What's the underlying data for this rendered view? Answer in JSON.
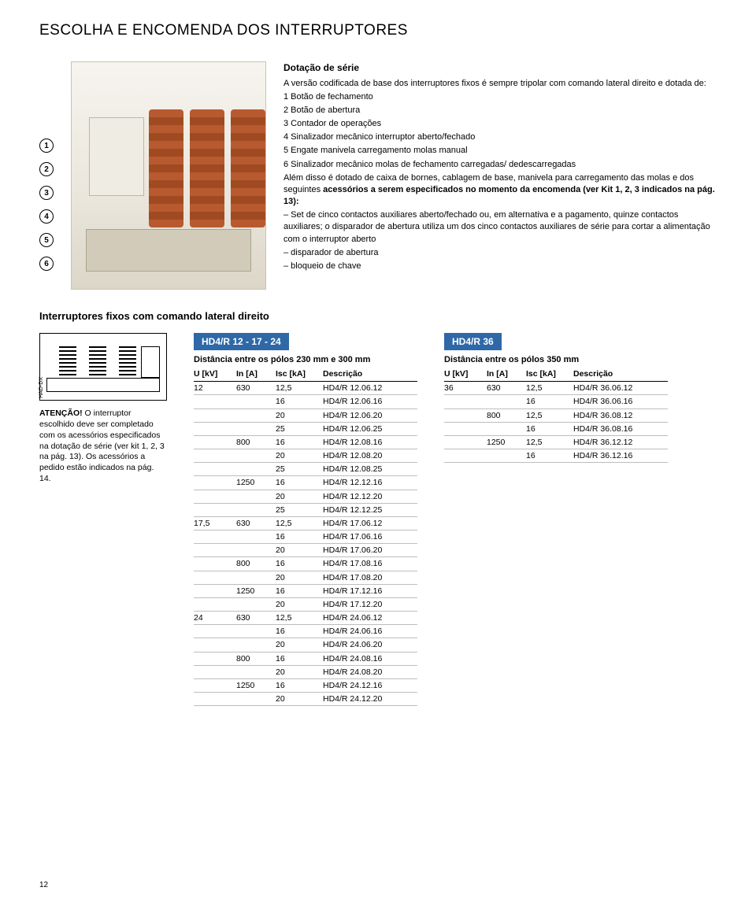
{
  "page_title": "ESCOLHA E ENCOMENDA DOS INTERRUPTORES",
  "callouts": [
    "1",
    "2",
    "3",
    "4",
    "5",
    "6"
  ],
  "desc": {
    "heading": "Dotação de série",
    "intro": "A versão codificada de base dos interruptores fixos é sempre tripolar com comando lateral direito e dotada de:",
    "items": [
      "1 Botão de fechamento",
      "2 Botão de abertura",
      "3 Contador de operações",
      "4 Sinalizador mecânico interruptor aberto/fechado",
      "5 Engate manivela carregamento molas manual",
      "6 Sinalizador mecânico molas de fechamento carregadas/ dedescarregadas"
    ],
    "para2a": "Além disso é dotado de caixa de bornes, cablagem de base, manivela para carregamento das molas e dos seguintes ",
    "para2b_bold": "acessórios a serem especificados no momento da encomenda (ver Kit 1, 2, 3 indicados na pág. 13):",
    "bullets": [
      "– Set de cinco contactos auxiliares aberto/fechado ou, em alternativa e a pagamento, quinze contactos auxiliares; o disparador de abertura utiliza um dos cinco contactos auxiliares de série para cortar a alimentação com o interruptor aberto",
      "– disparador de abertura",
      "– bloqueio de chave"
    ]
  },
  "subsection_title": "Interruptores fixos com comando lateral direito",
  "left": {
    "icon_label": "HAD-DX",
    "note_bold": "ATENÇÃO!",
    "note_rest": " O interruptor escolhido deve ser completado com os acessórios especificados na dotação de série (ver kit 1, 2, 3 na pág. 13). Os acessórios a pedido estão indicados na pág. 14."
  },
  "tables": {
    "t1": {
      "badge": "HD4/R 12 - 17 - 24",
      "badge_bg": "#2f68a7",
      "caption": "Distância entre os pólos 230 mm e 300 mm",
      "headers": [
        "U [kV]",
        "In [A]",
        "Isc [kA]",
        "Descrição"
      ],
      "rows": [
        {
          "g": "grp",
          "u": "12",
          "in": "630",
          "isc": "12,5",
          "d": "HD4/R 12.06.12"
        },
        {
          "g": "",
          "u": "",
          "in": "",
          "isc": "16",
          "d": "HD4/R 12.06.16"
        },
        {
          "g": "",
          "u": "",
          "in": "",
          "isc": "20",
          "d": "HD4/R 12.06.20"
        },
        {
          "g": "",
          "u": "",
          "in": "",
          "isc": "25",
          "d": "HD4/R 12.06.25"
        },
        {
          "g": "sub",
          "u": "",
          "in": "800",
          "isc": "16",
          "d": "HD4/R 12.08.16"
        },
        {
          "g": "",
          "u": "",
          "in": "",
          "isc": "20",
          "d": "HD4/R 12.08.20"
        },
        {
          "g": "",
          "u": "",
          "in": "",
          "isc": "25",
          "d": "HD4/R 12.08.25"
        },
        {
          "g": "sub",
          "u": "",
          "in": "1250",
          "isc": "16",
          "d": "HD4/R 12.12.16"
        },
        {
          "g": "",
          "u": "",
          "in": "",
          "isc": "20",
          "d": "HD4/R 12.12.20"
        },
        {
          "g": "",
          "u": "",
          "in": "",
          "isc": "25",
          "d": "HD4/R 12.12.25"
        },
        {
          "g": "grp",
          "u": "17,5",
          "in": "630",
          "isc": "12,5",
          "d": "HD4/R 17.06.12"
        },
        {
          "g": "",
          "u": "",
          "in": "",
          "isc": "16",
          "d": "HD4/R 17.06.16"
        },
        {
          "g": "",
          "u": "",
          "in": "",
          "isc": "20",
          "d": "HD4/R 17.06.20"
        },
        {
          "g": "sub",
          "u": "",
          "in": "800",
          "isc": "16",
          "d": "HD4/R 17.08.16"
        },
        {
          "g": "",
          "u": "",
          "in": "",
          "isc": "20",
          "d": "HD4/R 17.08.20"
        },
        {
          "g": "sub",
          "u": "",
          "in": "1250",
          "isc": "16",
          "d": "HD4/R 17.12.16"
        },
        {
          "g": "",
          "u": "",
          "in": "",
          "isc": "20",
          "d": "HD4/R 17.12.20"
        },
        {
          "g": "grp",
          "u": "24",
          "in": "630",
          "isc": "12,5",
          "d": "HD4/R 24.06.12"
        },
        {
          "g": "",
          "u": "",
          "in": "",
          "isc": "16",
          "d": "HD4/R 24.06.16"
        },
        {
          "g": "",
          "u": "",
          "in": "",
          "isc": "20",
          "d": "HD4/R 24.06.20"
        },
        {
          "g": "sub",
          "u": "",
          "in": "800",
          "isc": "16",
          "d": "HD4/R 24.08.16"
        },
        {
          "g": "",
          "u": "",
          "in": "",
          "isc": "20",
          "d": "HD4/R 24.08.20"
        },
        {
          "g": "sub",
          "u": "",
          "in": "1250",
          "isc": "16",
          "d": "HD4/R 24.12.16"
        },
        {
          "g": "",
          "u": "",
          "in": "",
          "isc": "20",
          "d": "HD4/R 24.12.20"
        }
      ]
    },
    "t2": {
      "badge": "HD4/R 36",
      "badge_bg": "#2f68a7",
      "caption": "Distância entre os pólos 350 mm",
      "headers": [
        "U [kV]",
        "In [A]",
        "Isc [kA]",
        "Descrição"
      ],
      "rows": [
        {
          "g": "grp",
          "u": "36",
          "in": "630",
          "isc": "12,5",
          "d": "HD4/R 36.06.12"
        },
        {
          "g": "",
          "u": "",
          "in": "",
          "isc": "16",
          "d": "HD4/R 36.06.16"
        },
        {
          "g": "sub",
          "u": "",
          "in": "800",
          "isc": "12,5",
          "d": "HD4/R 36.08.12"
        },
        {
          "g": "",
          "u": "",
          "in": "",
          "isc": "16",
          "d": "HD4/R 36.08.16"
        },
        {
          "g": "sub",
          "u": "",
          "in": "1250",
          "isc": "12,5",
          "d": "HD4/R 36.12.12"
        },
        {
          "g": "",
          "u": "",
          "in": "",
          "isc": "16",
          "d": "HD4/R 36.12.16"
        }
      ]
    }
  },
  "page_number": "12"
}
